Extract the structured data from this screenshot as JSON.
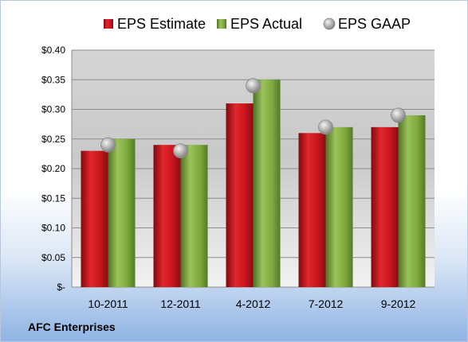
{
  "chart_data": {
    "type": "bar",
    "categories": [
      "10-2011",
      "12-2011",
      "4-2012",
      "7-2012",
      "9-2012"
    ],
    "series": [
      {
        "name": "EPS Estimate",
        "kind": "bar",
        "color": "#c0151c",
        "values": [
          0.23,
          0.24,
          0.31,
          0.26,
          0.27
        ]
      },
      {
        "name": "EPS Actual",
        "kind": "bar",
        "color": "#78a33b",
        "values": [
          0.25,
          0.24,
          0.35,
          0.27,
          0.29
        ]
      },
      {
        "name": "EPS GAAP",
        "kind": "marker",
        "color": "#a9a9a9",
        "values": [
          0.24,
          0.23,
          0.34,
          0.27,
          0.29
        ]
      }
    ],
    "yticks": [
      "$-",
      "$0.05",
      "$0.10",
      "$0.15",
      "$0.20",
      "$0.25",
      "$0.30",
      "$0.35",
      "$0.40"
    ],
    "ylim": [
      0,
      0.4
    ],
    "ystep": 0.05,
    "legend_position": "top",
    "grid": true
  },
  "footer": {
    "company": "AFC Enterprises"
  }
}
